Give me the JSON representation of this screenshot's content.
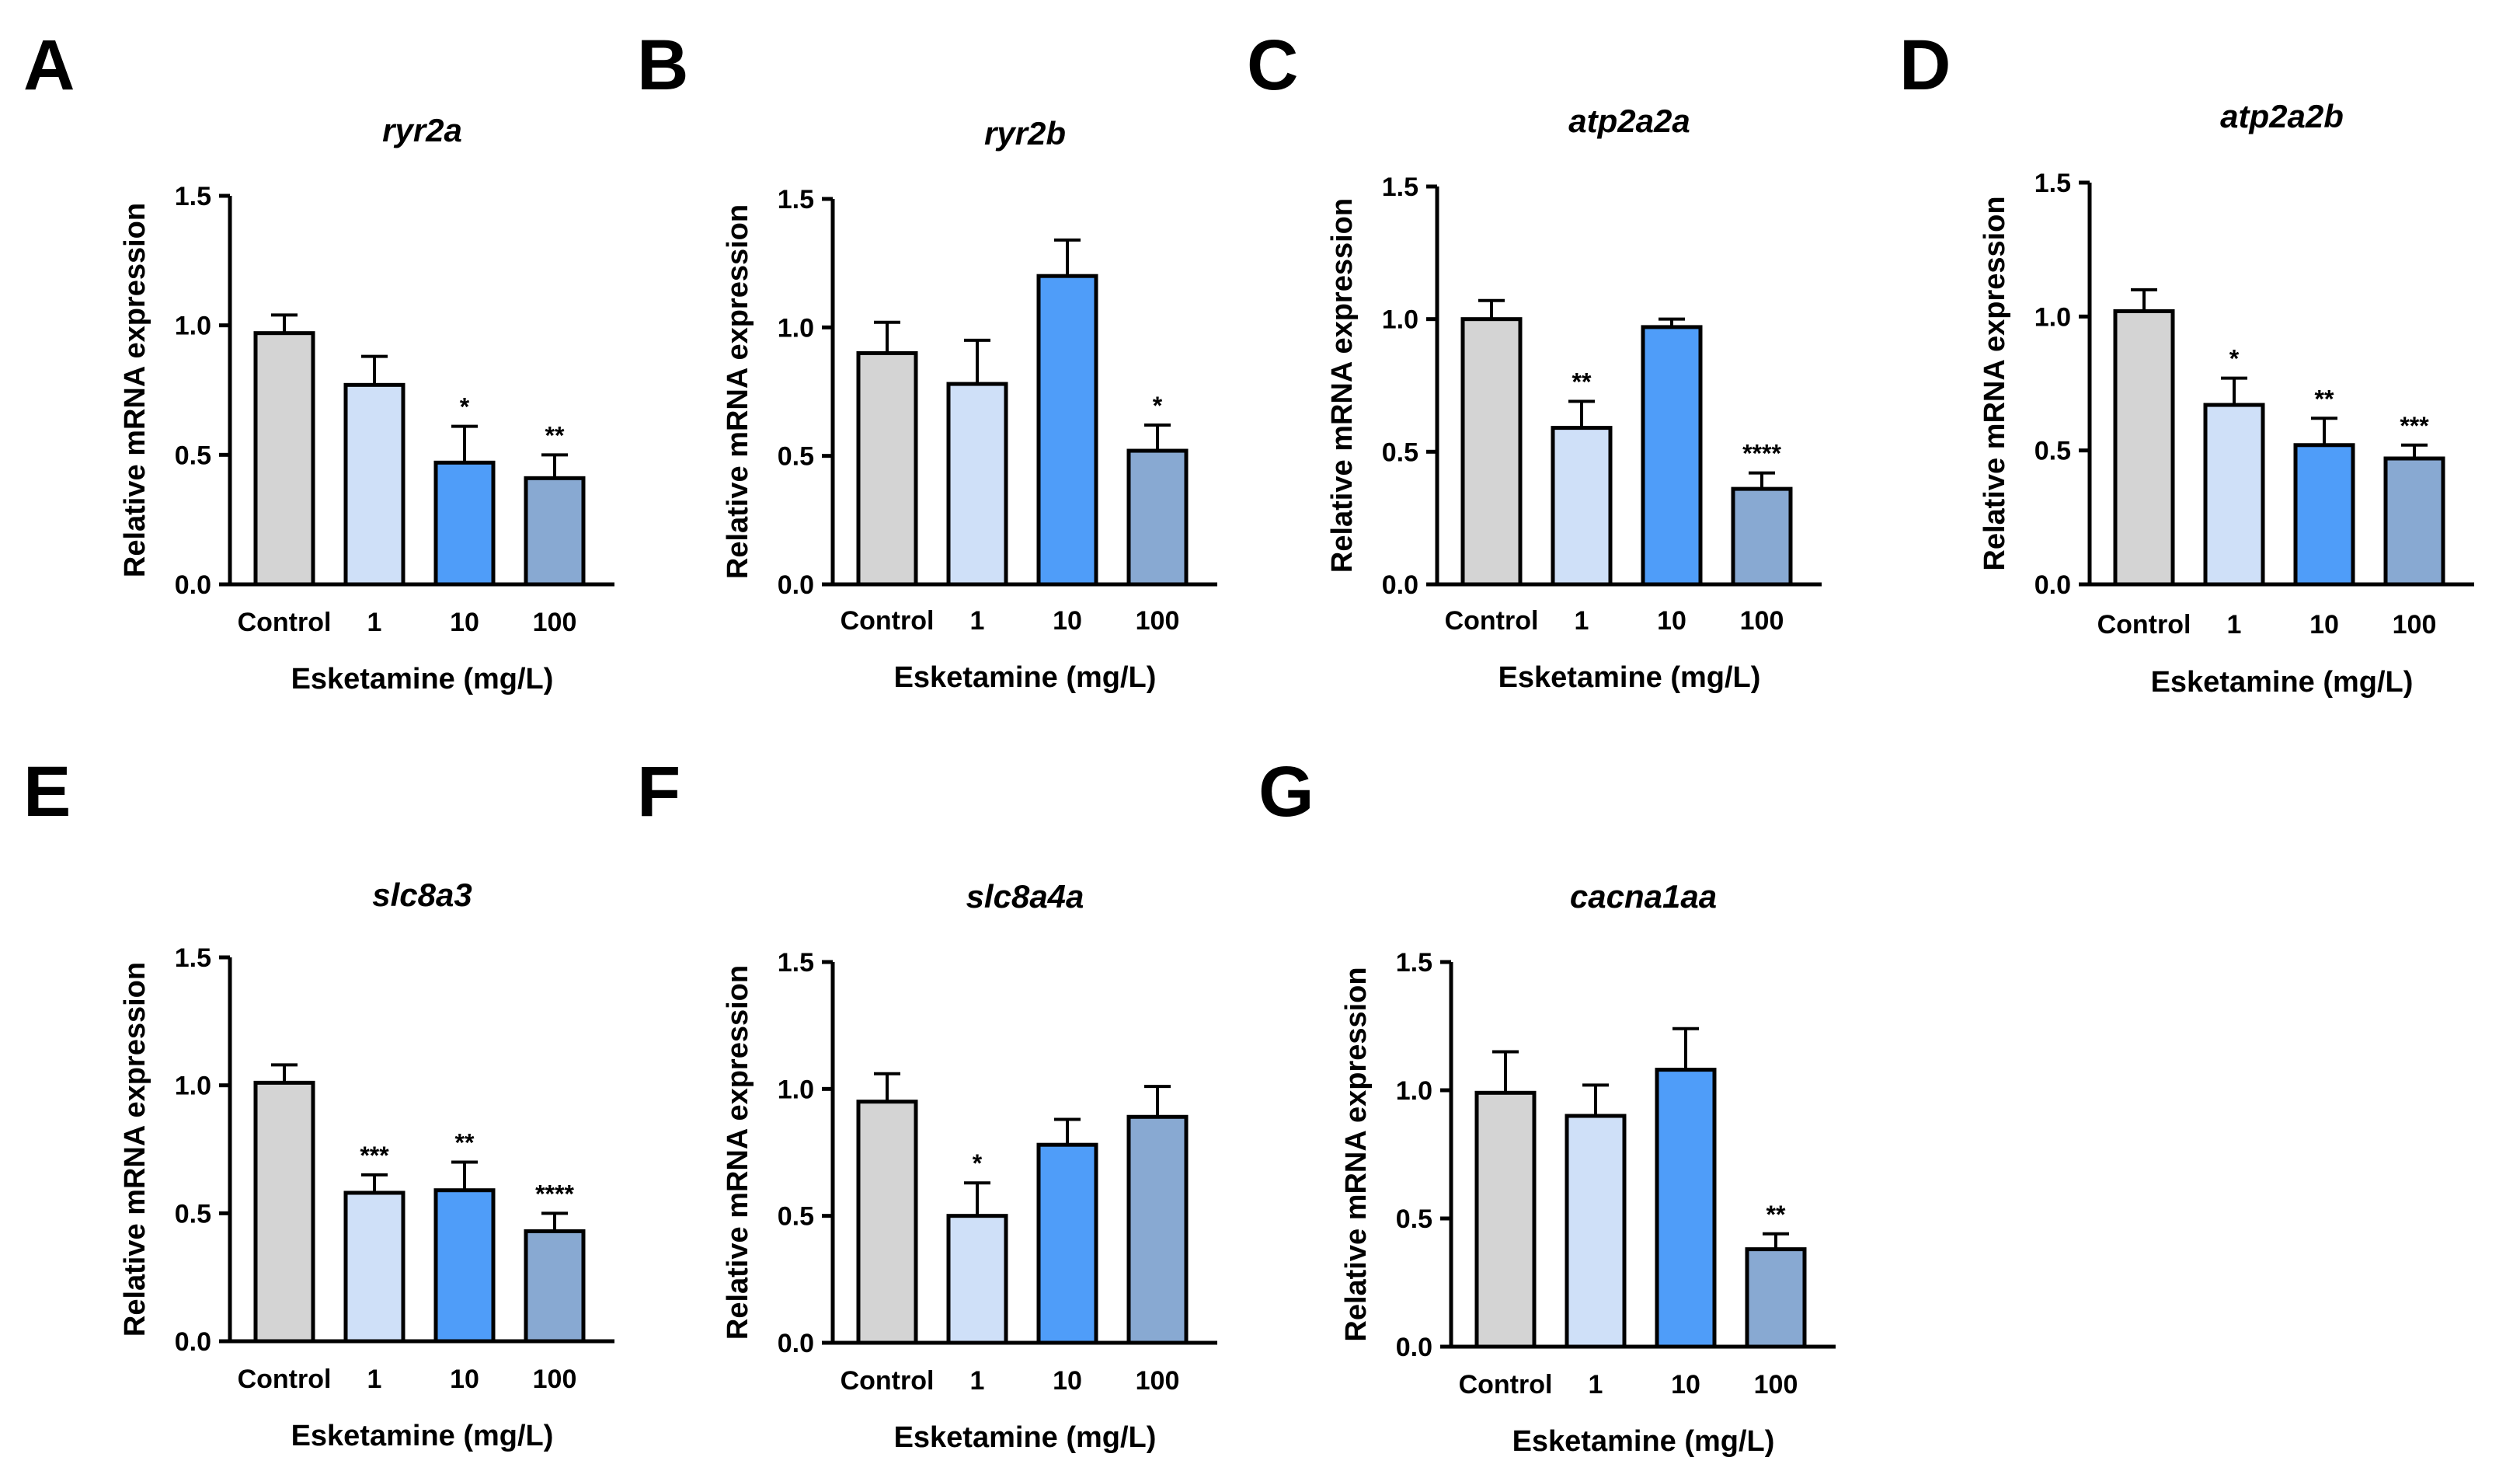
{
  "figure": {
    "colors": {
      "control": "#d4d4d4",
      "dose_1": "#cfe0f8",
      "dose_10": "#4f9df9",
      "dose_100": "#88a9d2",
      "axis": "#000000"
    }
  },
  "chart_data": [
    {
      "panel": "A",
      "type": "bar",
      "title": "ryr2a",
      "xlabel": "Esketamine (mg/L)",
      "ylabel": "Relative mRNA expression",
      "ylim": [
        0,
        1.5
      ],
      "yticks": [
        "0.0",
        "0.5",
        "1.0",
        "1.5"
      ],
      "categories": [
        "Control",
        "1",
        "10",
        "100"
      ],
      "values": [
        0.97,
        0.77,
        0.47,
        0.41
      ],
      "errors": [
        0.07,
        0.11,
        0.14,
        0.09
      ],
      "significance": [
        "",
        "",
        "*",
        "**"
      ]
    },
    {
      "panel": "B",
      "type": "bar",
      "title": "ryr2b",
      "xlabel": "Esketamine (mg/L)",
      "ylabel": "Relative mRNA expression",
      "ylim": [
        0,
        1.5
      ],
      "yticks": [
        "0.0",
        "0.5",
        "1.0",
        "1.5"
      ],
      "categories": [
        "Control",
        "1",
        "10",
        "100"
      ],
      "values": [
        0.9,
        0.78,
        1.2,
        0.52
      ],
      "errors": [
        0.12,
        0.17,
        0.14,
        0.1
      ],
      "significance": [
        "",
        "",
        "",
        "*"
      ]
    },
    {
      "panel": "C",
      "type": "bar",
      "title": "atp2a2a",
      "xlabel": "Esketamine (mg/L)",
      "ylabel": "Relative mRNA expression",
      "ylim": [
        0,
        1.5
      ],
      "yticks": [
        "0.0",
        "0.5",
        "1.0",
        "1.5"
      ],
      "categories": [
        "Control",
        "1",
        "10",
        "100"
      ],
      "values": [
        1.0,
        0.59,
        0.97,
        0.36
      ],
      "errors": [
        0.07,
        0.1,
        0.03,
        0.06
      ],
      "significance": [
        "",
        "**",
        "",
        "****"
      ]
    },
    {
      "panel": "D",
      "type": "bar",
      "title": "atp2a2b",
      "xlabel": "Esketamine (mg/L)",
      "ylabel": "Relative mRNA expression",
      "ylim": [
        0,
        1.5
      ],
      "yticks": [
        "0.0",
        "0.5",
        "1.0",
        "1.5"
      ],
      "categories": [
        "Control",
        "1",
        "10",
        "100"
      ],
      "values": [
        1.02,
        0.67,
        0.52,
        0.47
      ],
      "errors": [
        0.08,
        0.1,
        0.1,
        0.05
      ],
      "significance": [
        "",
        "*",
        "**",
        "***"
      ]
    },
    {
      "panel": "E",
      "type": "bar",
      "title": "slc8a3",
      "xlabel": "Esketamine (mg/L)",
      "ylabel": "Relative mRNA expression",
      "ylim": [
        0,
        1.5
      ],
      "yticks": [
        "0.0",
        "0.5",
        "1.0",
        "1.5"
      ],
      "categories": [
        "Control",
        "1",
        "10",
        "100"
      ],
      "values": [
        1.01,
        0.58,
        0.59,
        0.43
      ],
      "errors": [
        0.07,
        0.07,
        0.11,
        0.07
      ],
      "significance": [
        "",
        "***",
        "**",
        "****"
      ]
    },
    {
      "panel": "F",
      "type": "bar",
      "title": "slc8a4a",
      "xlabel": "Esketamine (mg/L)",
      "ylabel": "Relative mRNA expression",
      "ylim": [
        0,
        1.5
      ],
      "yticks": [
        "0.0",
        "0.5",
        "1.0",
        "1.5"
      ],
      "categories": [
        "Control",
        "1",
        "10",
        "100"
      ],
      "values": [
        0.95,
        0.5,
        0.78,
        0.89
      ],
      "errors": [
        0.11,
        0.13,
        0.1,
        0.12
      ],
      "significance": [
        "",
        "*",
        "",
        ""
      ]
    },
    {
      "panel": "G",
      "type": "bar",
      "title": "cacna1aa",
      "xlabel": "Esketamine (mg/L)",
      "ylabel": "Relative mRNA expression",
      "ylim": [
        0,
        1.5
      ],
      "yticks": [
        "0.0",
        "0.5",
        "1.0",
        "1.5"
      ],
      "categories": [
        "Control",
        "1",
        "10",
        "100"
      ],
      "values": [
        0.99,
        0.9,
        1.08,
        0.38
      ],
      "errors": [
        0.16,
        0.12,
        0.16,
        0.06
      ],
      "significance": [
        "",
        "",
        "",
        "**"
      ]
    }
  ]
}
